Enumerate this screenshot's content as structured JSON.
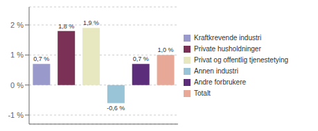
{
  "chart_data": {
    "type": "bar",
    "categories": [
      "Kraftkrevende industri",
      "Private husholdninger",
      "Privat og offentlig tjenestetying",
      "Annen industri",
      "Andre forbrukere",
      "Totalt"
    ],
    "values": [
      0.7,
      1.8,
      1.9,
      -0.6,
      0.7,
      1.0
    ],
    "value_labels": [
      "0,7 %",
      "1,8 %",
      "1,9 %",
      "-0,6 %",
      "0,7 %",
      "1,0 %"
    ],
    "colors": [
      "#9999cc",
      "#7b3055",
      "#e8e8c0",
      "#99c4d8",
      "#5c2d7a",
      "#e8a898"
    ],
    "data_labels": true,
    "ylim": [
      -1.3,
      2.6
    ],
    "yticks": [
      {
        "value": -1,
        "label": "-1 %"
      },
      {
        "value": 0,
        "label": "0 %"
      },
      {
        "value": 1,
        "label": "1 %"
      },
      {
        "value": 2,
        "label": "2 %"
      }
    ],
    "grid": true,
    "legend": "right",
    "tick_labels": "y"
  }
}
